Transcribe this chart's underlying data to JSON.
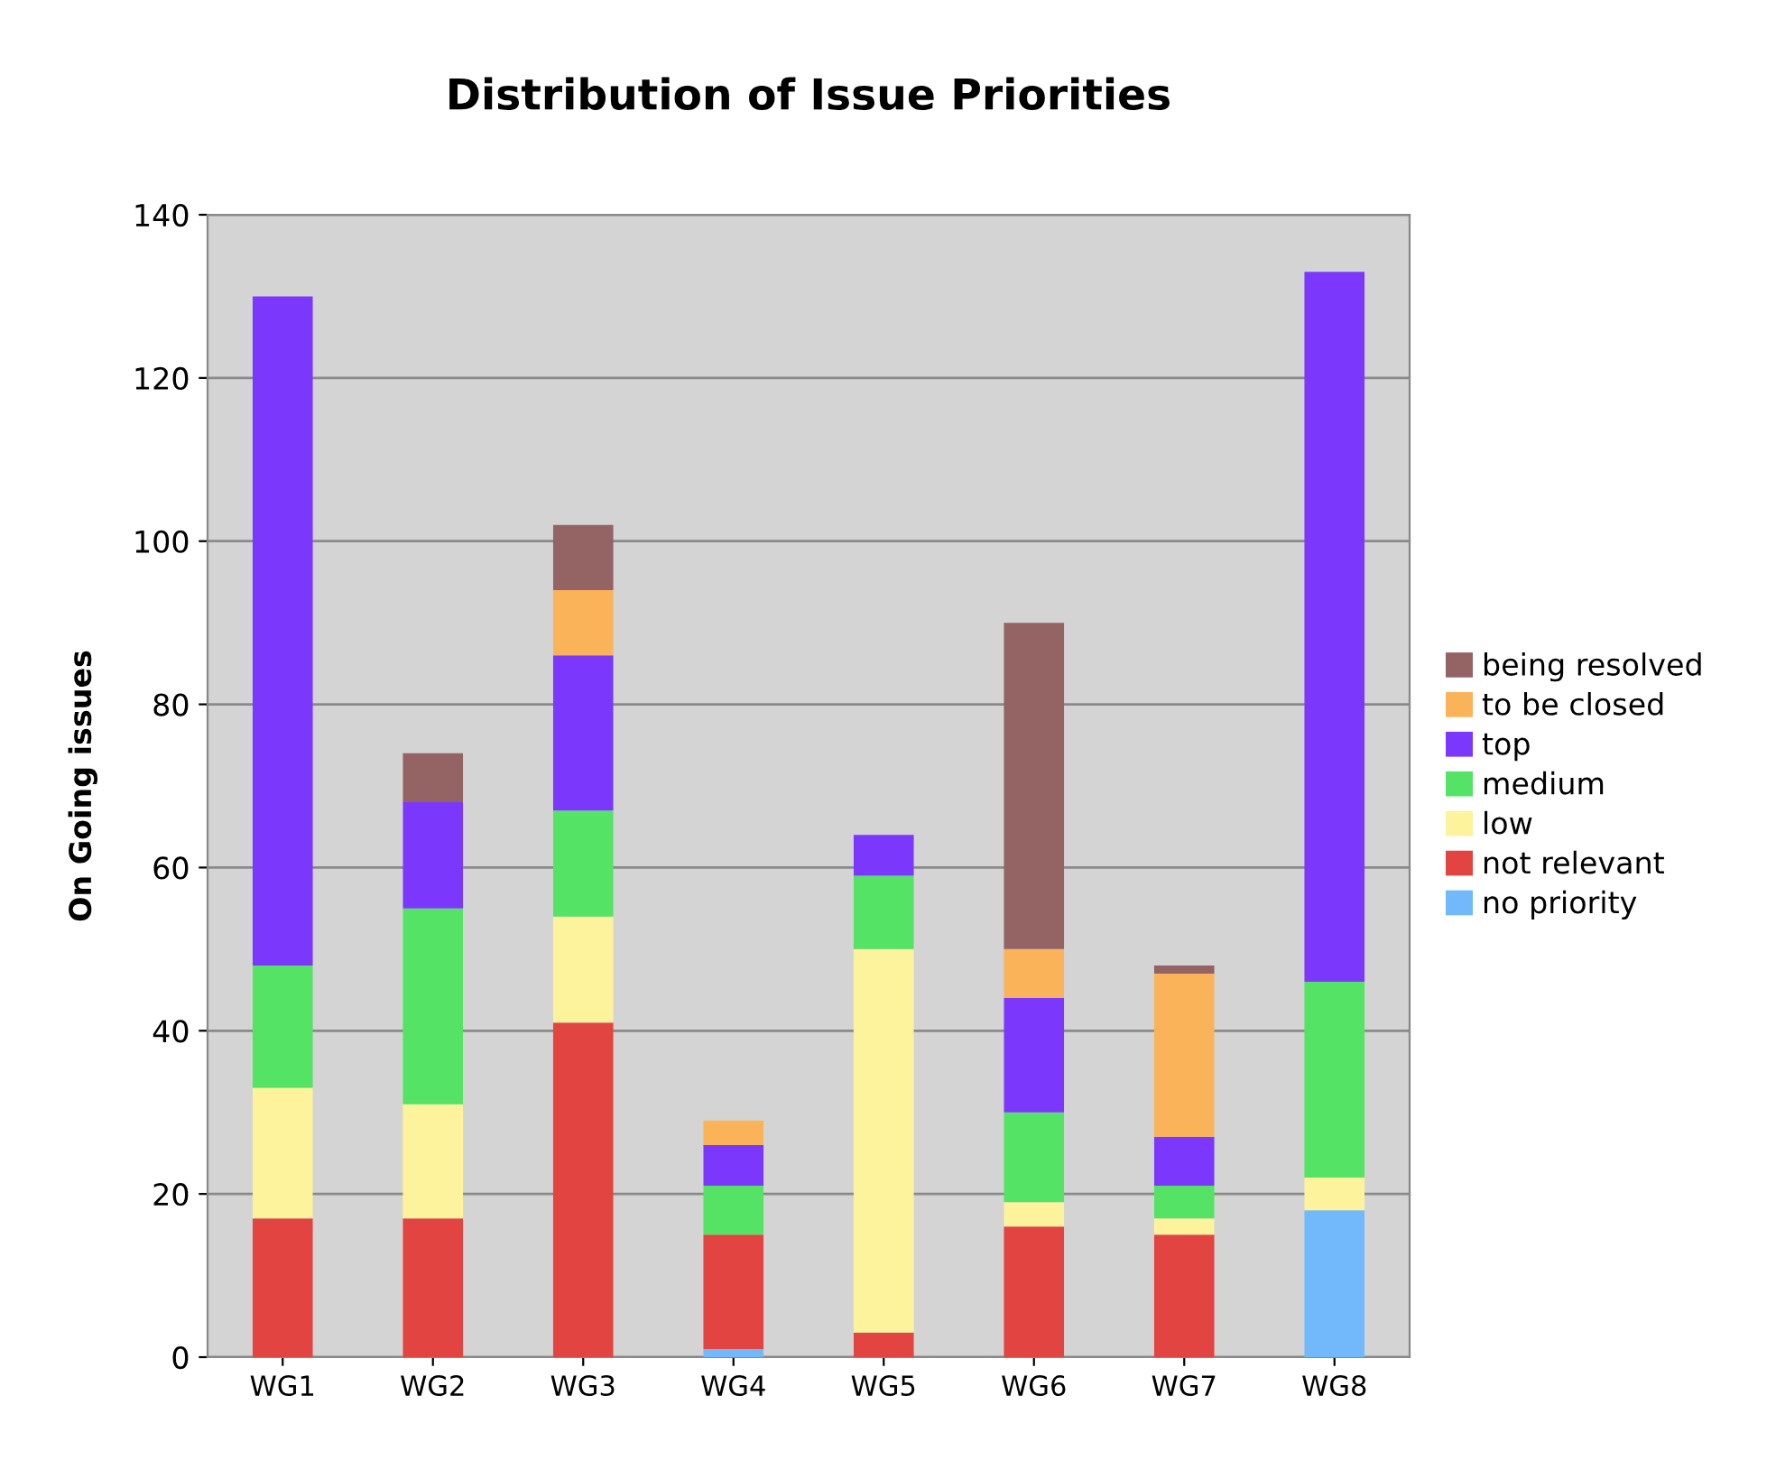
{
  "chart_data": {
    "type": "bar",
    "title": "Distribution of Issue Priorities",
    "ylabel": "On Going issues",
    "categories": [
      "WG1",
      "WG2",
      "WG3",
      "WG4",
      "WG5",
      "WG6",
      "WG7",
      "WG8"
    ],
    "stacked": true,
    "ylim": [
      0,
      140
    ],
    "yticks": [
      0,
      20,
      40,
      60,
      80,
      100,
      120,
      140
    ],
    "grid": "y",
    "legend": "right",
    "series": [
      {
        "name": "no priority",
        "color": "#72b9fc",
        "values": [
          null,
          null,
          null,
          1,
          null,
          null,
          null,
          18
        ]
      },
      {
        "name": "not relevant",
        "color": "#e24541",
        "values": [
          17,
          17,
          41,
          14,
          3,
          16,
          15,
          null
        ]
      },
      {
        "name": "low",
        "color": "#fdf39c",
        "values": [
          16,
          14,
          13,
          null,
          47,
          3,
          2,
          4
        ]
      },
      {
        "name": "medium",
        "color": "#55e366",
        "values": [
          15,
          24,
          13,
          6,
          9,
          11,
          4,
          24
        ]
      },
      {
        "name": "top",
        "color": "#7b38fc",
        "values": [
          82,
          13,
          19,
          5,
          5,
          14,
          6,
          87
        ]
      },
      {
        "name": "to be closed",
        "color": "#fbb35a",
        "values": [
          null,
          null,
          8,
          3,
          null,
          6,
          20,
          null
        ]
      },
      {
        "name": "being resolved",
        "color": "#946363",
        "values": [
          null,
          6,
          8,
          null,
          null,
          40,
          1,
          null
        ]
      }
    ]
  }
}
